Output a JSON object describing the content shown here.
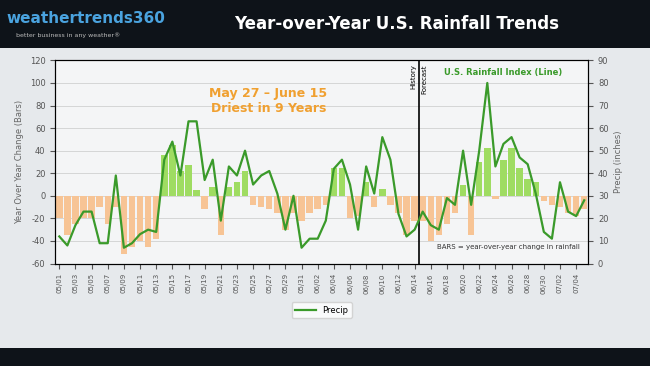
{
  "header": {
    "logo": "weathertrends360",
    "tagline": "better business in any weather®"
  },
  "chart_data": {
    "type": "bar",
    "title": "Year-over-Year U.S. Rainfall Trends",
    "y_label": "Year Over Year Change (Bars)",
    "y2_label": "Precip (inches)",
    "categories": [
      "05/01",
      null,
      "05/03",
      null,
      "05/05",
      null,
      "05/07",
      null,
      "05/09",
      null,
      "05/11",
      null,
      "05/13",
      null,
      "05/15",
      null,
      "05/17",
      null,
      "05/19",
      null,
      "05/21",
      null,
      "05/23",
      null,
      "05/25",
      null,
      "05/27",
      null,
      "05/29",
      null,
      "05/31",
      null,
      "06/02",
      null,
      "06/04",
      null,
      "06/06",
      null,
      "06/08",
      null,
      "06/10",
      null,
      "06/12",
      null,
      "06/14",
      null,
      "06/16",
      null,
      "06/18",
      null,
      "06/20",
      null,
      "06/22",
      null,
      "06/24",
      null,
      "06/26",
      null,
      "06/28",
      null,
      "06/30",
      null,
      "07/02",
      null,
      "07/04",
      null
    ],
    "series": [
      {
        "type": "bar",
        "values": [
          -20,
          -35,
          -25,
          -20,
          -20,
          -10,
          -25,
          -10,
          -52,
          -45,
          -40,
          -45,
          -38,
          36,
          45,
          22,
          27,
          5,
          -12,
          8,
          -35,
          8,
          12,
          22,
          -8,
          -10,
          -12,
          -15,
          -30,
          -15,
          -22,
          -15,
          -12,
          -8,
          25,
          25,
          -20,
          -18,
          12,
          -10,
          6,
          -8,
          -15,
          -35,
          -22,
          -22,
          -40,
          -35,
          -25,
          -15,
          10,
          -35,
          30,
          42,
          -3,
          32,
          42,
          25,
          15,
          12,
          -5,
          -8,
          -10,
          -15,
          -18,
          -12
        ],
        "colors": [
          "#f7c495",
          "#f7c495",
          "#f7c495",
          "#f7c495",
          "#f7c495",
          "#f7c495",
          "#f7c495",
          "#f7c495",
          "#f7c495",
          "#f7c495",
          "#f7c495",
          "#f7c495",
          "#f7c495",
          "#9fdc62",
          "#9fdc62",
          "#9fdc62",
          "#9fdc62",
          "#9fdc62",
          "#f7c495",
          "#9fdc62",
          "#f7c495",
          "#9fdc62",
          "#9fdc62",
          "#9fdc62",
          "#f7c495",
          "#f7c495",
          "#f7c495",
          "#f7c495",
          "#f7c495",
          "#f7c495",
          "#f7c495",
          "#f7c495",
          "#f7c495",
          "#f7c495",
          "#9fdc62",
          "#9fdc62",
          "#f7c495",
          "#f7c495",
          "#9fdc62",
          "#f7c495",
          "#9fdc62",
          "#f7c495",
          "#f7c495",
          "#f7c495",
          "#f7c495",
          "#f7c495",
          "#f7c495",
          "#f7c495",
          "#f7c495",
          "#f7c495",
          "#9fdc62",
          "#f7c495",
          "#9fdc62",
          "#9fdc62",
          "#f7c495",
          "#9fdc62",
          "#9fdc62",
          "#9fdc62",
          "#9fdc62",
          "#9fdc62",
          "#f7c495",
          "#f7c495",
          "#f7c495",
          "#f7c495",
          "#f7c495",
          "#f7c495"
        ]
      },
      {
        "type": "line",
        "name": "Precip",
        "color": "#3a9a2a",
        "axis": "y2",
        "values": [
          12,
          8,
          17,
          23,
          23,
          9,
          9,
          39,
          7,
          9,
          13,
          15,
          14,
          46,
          54,
          39,
          63,
          63,
          37,
          46,
          19,
          43,
          39,
          50,
          35,
          39,
          41,
          31,
          15,
          30,
          7,
          11,
          11,
          19,
          42,
          46,
          35,
          15,
          43,
          31,
          56,
          46,
          22,
          12,
          15,
          23,
          17,
          15,
          29,
          26,
          50,
          26,
          50,
          80,
          43,
          53,
          56,
          47,
          44,
          31,
          14,
          11,
          36,
          23,
          21,
          28
        ]
      }
    ],
    "ylim": [
      -60,
      120
    ],
    "yticks": [
      -60,
      -40,
      -20,
      0,
      20,
      40,
      60,
      80,
      100,
      120
    ],
    "y2lim": [
      0,
      90
    ],
    "y2ticks": [
      0,
      10,
      20,
      30,
      40,
      50,
      60,
      70,
      80,
      90
    ],
    "grid": true,
    "legend": "upper center",
    "annotations": [
      {
        "text": "May 27 – June 15\nDriest in 9 Years"
      },
      {
        "text": "History",
        "x": "06/14"
      },
      {
        "text": "Forecast",
        "x": "06/14"
      },
      {
        "text": "U.S. Rainfall Index (Line)"
      },
      {
        "text": "BARS = year-over-year change in rainfall"
      }
    ]
  }
}
